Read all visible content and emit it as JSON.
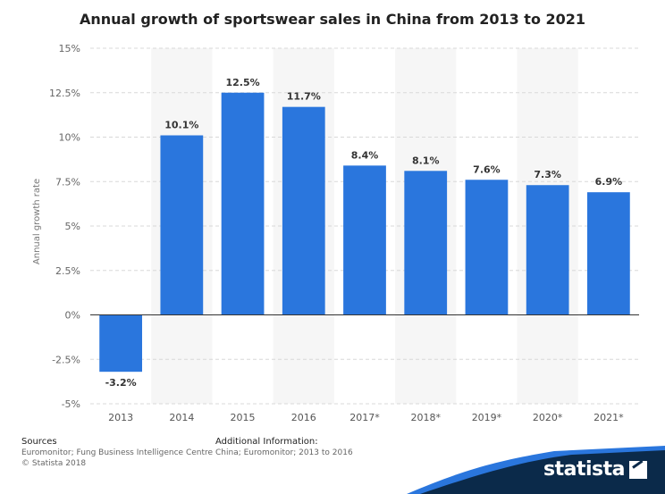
{
  "chart_data": {
    "type": "bar",
    "title": "Annual growth of sportswear sales in China from 2013 to 2021",
    "xlabel": "",
    "ylabel": "Annual growth rate",
    "categories": [
      "2013",
      "2014",
      "2015",
      "2016",
      "2017*",
      "2018*",
      "2019*",
      "2020*",
      "2021*"
    ],
    "values": [
      -3.2,
      10.1,
      12.5,
      11.7,
      8.4,
      8.1,
      7.6,
      7.3,
      6.9
    ],
    "data_labels": [
      "-3.2%",
      "10.1%",
      "12.5%",
      "11.7%",
      "8.4%",
      "8.1%",
      "7.6%",
      "7.3%",
      "6.9%"
    ],
    "ylim": [
      -5,
      15
    ],
    "yticks": [
      15,
      12.5,
      10,
      7.5,
      5,
      2.5,
      0,
      -2.5,
      -5
    ],
    "ytick_labels": [
      "15%",
      "12.5%",
      "10%",
      "7.5%",
      "5%",
      "2.5%",
      "0%",
      "-2.5%",
      "-5%"
    ],
    "grid": true,
    "legend": false,
    "bar_color": "#2a76dd",
    "alt_band_color": "#f6f6f6"
  },
  "footer": {
    "sources_heading": "Sources",
    "sources_text": "Euromonitor; Fung Business Intelligence Centre",
    "copyright": "© Statista 2018",
    "additional_heading": "Additional Information:",
    "additional_text": "China; Euromonitor; 2013 to 2016"
  },
  "brand": {
    "name": "statista",
    "band_color": "#0b2a4a",
    "accent_color": "#2a76dd"
  }
}
